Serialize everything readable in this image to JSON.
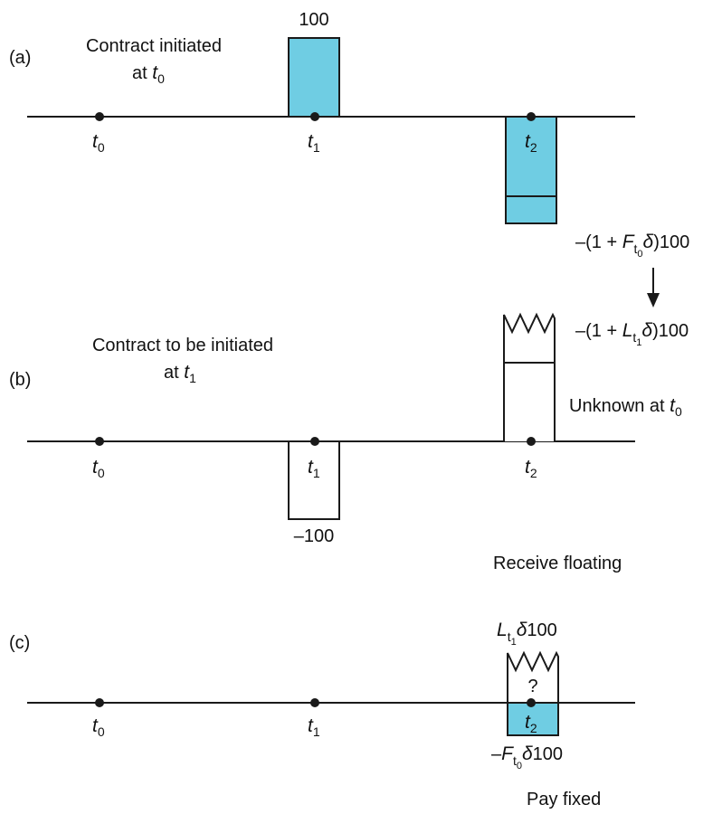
{
  "colors": {
    "fill_blue": "#6fcde3",
    "line": "#1a1a1a"
  },
  "panel_a": {
    "tag": "(a)",
    "desc_line1": "Contract initiated",
    "desc_line2_prefix": "at ",
    "desc_t": "t",
    "desc_t_sub": "0",
    "cash_in": "100",
    "t0": {
      "base": "t",
      "sub": "0"
    },
    "t1": {
      "base": "t",
      "sub": "1"
    },
    "t2": {
      "base": "t",
      "sub": "2"
    },
    "payoff_prefix": "–(1 + ",
    "payoff_F": "F",
    "payoff_t": "t",
    "payoff_sub": "0",
    "payoff_delta": "δ",
    "payoff_suffix": ")100"
  },
  "panel_b": {
    "tag": "(b)",
    "desc_line1": "Contract to be initiated",
    "desc_line2_prefix": "at ",
    "desc_t": "t",
    "desc_t_sub": "1",
    "payoff_prefix": "–(1 + ",
    "payoff_L": "L",
    "payoff_t": "t",
    "payoff_sub": "1",
    "payoff_delta": "δ",
    "payoff_suffix": ")100",
    "unknown_prefix": "Unknown at ",
    "unknown_t": "t",
    "unknown_sub": "0",
    "cash_out": "–100",
    "t0": {
      "base": "t",
      "sub": "0"
    },
    "t1": {
      "base": "t",
      "sub": "1"
    },
    "t2": {
      "base": "t",
      "sub": "2"
    }
  },
  "panel_c": {
    "tag": "(c)",
    "receive_label": "Receive floating",
    "float_L": "L",
    "float_t": "t",
    "float_sub": "1",
    "float_delta": "δ",
    "float_suffix": "100",
    "question": "?",
    "fixed_prefix": "–",
    "fixed_F": "F",
    "fixed_t": "t",
    "fixed_sub": "0",
    "fixed_delta": "δ",
    "fixed_suffix": "100",
    "pay_label": "Pay fixed",
    "t0": {
      "base": "t",
      "sub": "0"
    },
    "t1": {
      "base": "t",
      "sub": "1"
    },
    "t2": {
      "base": "t",
      "sub": "2"
    }
  }
}
